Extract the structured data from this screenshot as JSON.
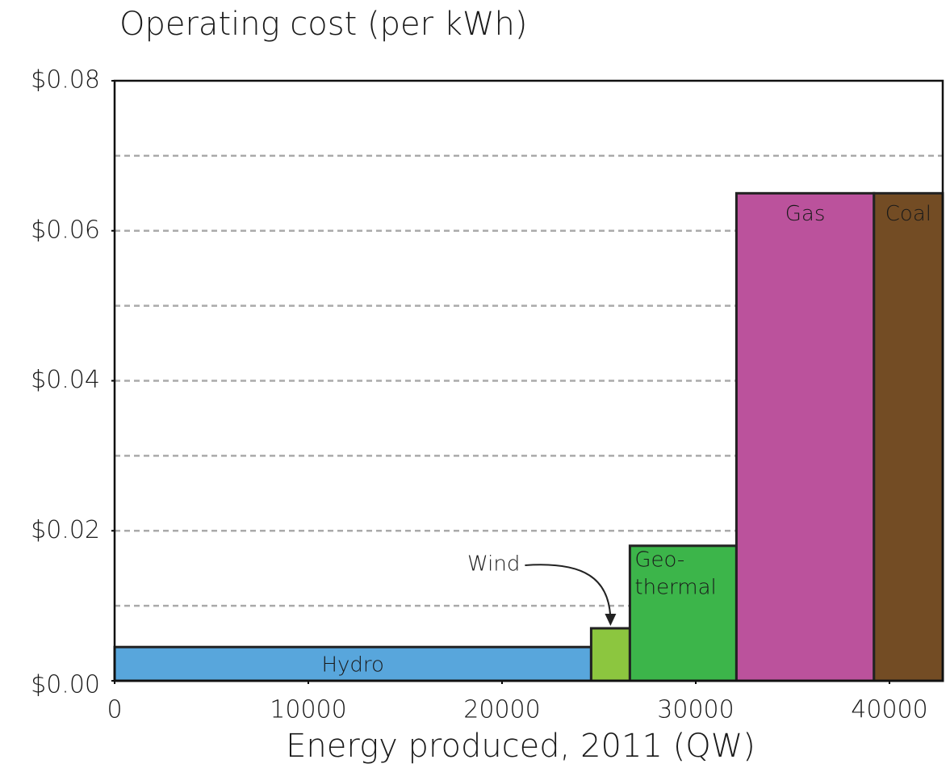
{
  "chart_data": {
    "type": "variable-width-bar",
    "title": "Operating cost (per kWh)",
    "x_label": "Energy produced, 2011 (QW)",
    "categories": [
      [
        "Hydro"
      ],
      [
        "Wind"
      ],
      [
        "Geo-",
        "thermal"
      ],
      [
        "Gas"
      ],
      [
        "Coal"
      ]
    ],
    "widths": [
      24600,
      2000,
      5500,
      7100,
      3550
    ],
    "values": [
      0.0045,
      0.007,
      0.018,
      0.065,
      0.065
    ],
    "colors": [
      "#58a6dc",
      "#8cc63f",
      "#3cb54a",
      "#bb529c",
      "#734c24"
    ],
    "xlim": [
      0,
      42750
    ],
    "xticks": [
      0,
      10000,
      20000,
      30000,
      40000
    ],
    "ylim": [
      0,
      0.08
    ],
    "yticks": [
      {
        "value": 0,
        "label": "$0.00"
      },
      {
        "value": 0.02,
        "label": "$0.02"
      },
      {
        "value": 0.04,
        "label": "$0.04"
      },
      {
        "value": 0.06,
        "label": "$0.06"
      },
      {
        "value": 0.08,
        "label": "$0.08"
      }
    ],
    "grid_lines": [
      0.01,
      0.02,
      0.03,
      0.04,
      0.05,
      0.06,
      0.07
    ],
    "grid": true
  }
}
